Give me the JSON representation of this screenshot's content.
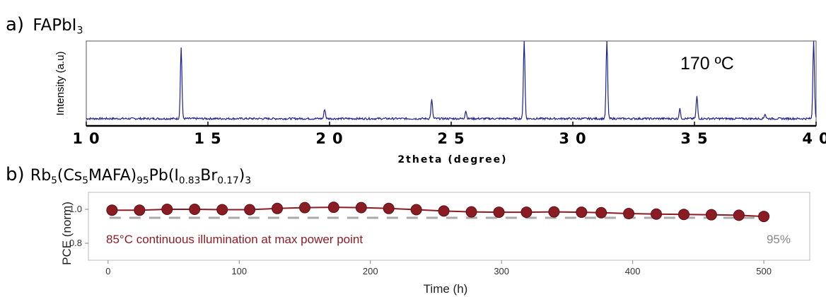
{
  "panels": {
    "a": {
      "letter": "a)",
      "formula": [
        [
          "FAPbI",
          ""
        ],
        [
          "3",
          "sub"
        ]
      ]
    },
    "b": {
      "letter": "b)",
      "formula": [
        [
          "Rb",
          ""
        ],
        [
          "5",
          "sub"
        ],
        [
          "(Cs",
          ""
        ],
        [
          "5",
          "sub"
        ],
        [
          "MAFA)",
          ""
        ],
        [
          "95",
          "sub"
        ],
        [
          "Pb(I",
          ""
        ],
        [
          "0.83",
          "sub"
        ],
        [
          "Br",
          ""
        ],
        [
          "0.17",
          "sub"
        ],
        [
          ")",
          ""
        ],
        [
          "3",
          "sub"
        ]
      ]
    }
  },
  "chart_data": [
    {
      "type": "line",
      "title": "",
      "xlabel": "2theta (degree)",
      "ylabel": "Intensity (a.u)",
      "xlim": [
        10,
        40
      ],
      "ylim": [
        0,
        1
      ],
      "x_ticks": [
        10,
        15,
        20,
        25,
        30,
        35,
        40
      ],
      "annotation": "170 ºC",
      "color": "#1f1f8f",
      "peaks": [
        {
          "x": 13.9,
          "y": 0.9
        },
        {
          "x": 19.8,
          "y": 0.12
        },
        {
          "x": 24.2,
          "y": 0.24
        },
        {
          "x": 25.6,
          "y": 0.1
        },
        {
          "x": 28.0,
          "y": 1.0
        },
        {
          "x": 31.4,
          "y": 1.0
        },
        {
          "x": 34.4,
          "y": 0.12
        },
        {
          "x": 35.1,
          "y": 0.28
        },
        {
          "x": 37.9,
          "y": 0.06
        },
        {
          "x": 39.9,
          "y": 1.0
        }
      ],
      "baseline": 0.02
    },
    {
      "type": "line",
      "title": "",
      "xlabel": "Time (h)",
      "ylabel": "PCE (norm)",
      "xlim": [
        -15,
        535
      ],
      "ylim": [
        0.7,
        1.1
      ],
      "x_ticks": [
        0,
        100,
        200,
        300,
        400,
        500
      ],
      "y_ticks": [
        0.8,
        1.0
      ],
      "y_tick_labels": [
        "0.8",
        "1.0"
      ],
      "series": [
        {
          "color": "#8c1c24",
          "x": [
            3,
            24,
            45,
            66,
            87,
            108,
            129,
            150,
            172,
            193,
            214,
            235,
            256,
            277,
            298,
            319,
            340,
            361,
            376,
            397,
            418,
            439,
            460,
            481,
            500
          ],
          "y": [
            0.995,
            0.995,
            1.0,
            1.0,
            0.998,
            0.998,
            1.005,
            1.01,
            1.012,
            1.01,
            1.005,
            0.998,
            0.99,
            0.985,
            0.983,
            0.983,
            0.985,
            0.983,
            0.98,
            0.975,
            0.972,
            0.97,
            0.968,
            0.965,
            0.958
          ]
        }
      ],
      "reference_line": {
        "y": 0.95,
        "label": "95%",
        "color": "#aaaaaa"
      },
      "annotation": "85°C continuous illumination at max power point",
      "annotation_color": "#8c1c24"
    }
  ]
}
